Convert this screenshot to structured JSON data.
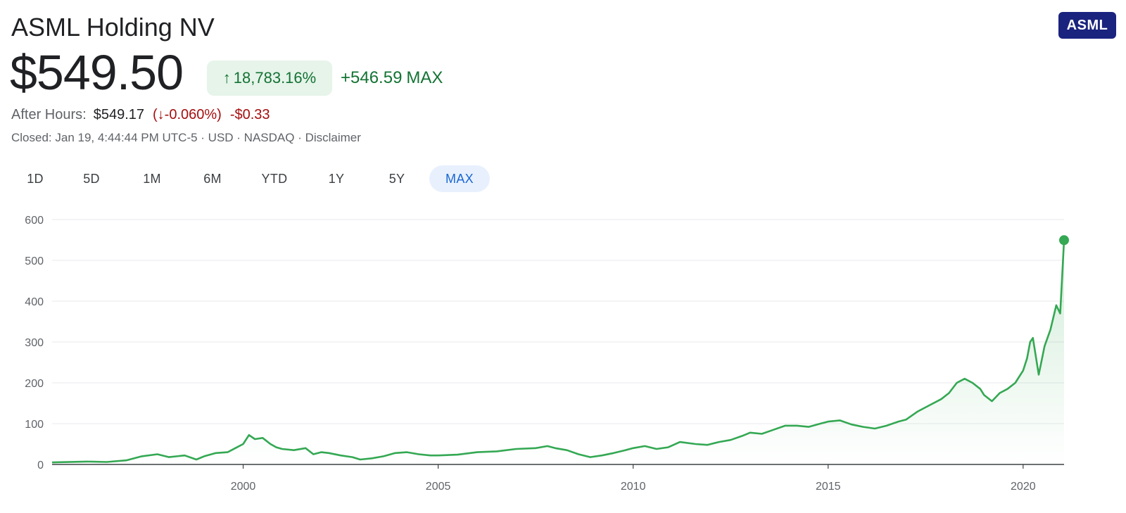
{
  "header": {
    "company": "ASML Holding NV",
    "ticker_badge": "ASML",
    "price": "$549.50",
    "change_pct": "18,783.16%",
    "change_abs": "+546.59",
    "change_range": "MAX",
    "arrow_up": "↑",
    "arrow_down": "↓"
  },
  "after_hours": {
    "label": "After Hours:",
    "price": "$549.17",
    "change_pct": "(↓-0.060%)",
    "change_abs": "-$0.33"
  },
  "meta_line": "Closed: Jan 19, 4:44:44 PM UTC-5 · USD · NASDAQ · Disclaimer",
  "ranges": [
    {
      "label": "1D",
      "active": false
    },
    {
      "label": "5D",
      "active": false
    },
    {
      "label": "1M",
      "active": false
    },
    {
      "label": "6M",
      "active": false
    },
    {
      "label": "YTD",
      "active": false
    },
    {
      "label": "1Y",
      "active": false
    },
    {
      "label": "5Y",
      "active": false
    },
    {
      "label": "MAX",
      "active": true
    }
  ],
  "colors": {
    "line": "#34a853",
    "positive": "#137333",
    "negative": "#a50e0e",
    "badge": "#1a237e"
  },
  "chart_data": {
    "type": "area",
    "ylim": [
      0,
      600
    ],
    "yticks": [
      0,
      100,
      200,
      300,
      400,
      500,
      600
    ],
    "xlim": [
      1995.1,
      2021.05
    ],
    "xticks": [
      2000,
      2005,
      2010,
      2015,
      2020
    ],
    "grid": true,
    "series": [
      {
        "x": [
          1995.1,
          1996.0,
          1996.5,
          1997.0,
          1997.4,
          1997.8,
          1998.1,
          1998.5,
          1998.8,
          1999.0,
          1999.3,
          1999.6,
          1999.8,
          2000.0,
          2000.15,
          2000.3,
          2000.5,
          2000.7,
          2000.85,
          2001.0,
          2001.3,
          2001.6,
          2001.8,
          2002.0,
          2002.2,
          2002.5,
          2002.8,
          2003.0,
          2003.3,
          2003.6,
          2003.9,
          2004.2,
          2004.5,
          2004.8,
          2005.0,
          2005.5,
          2006.0,
          2006.5,
          2007.0,
          2007.5,
          2007.8,
          2008.0,
          2008.3,
          2008.6,
          2008.9,
          2009.2,
          2009.5,
          2009.8,
          2010.0,
          2010.3,
          2010.6,
          2010.9,
          2011.2,
          2011.6,
          2011.9,
          2012.2,
          2012.5,
          2012.8,
          2013.0,
          2013.3,
          2013.6,
          2013.9,
          2014.2,
          2014.5,
          2014.8,
          2015.0,
          2015.3,
          2015.6,
          2015.9,
          2016.2,
          2016.5,
          2016.8,
          2017.0,
          2017.3,
          2017.6,
          2017.9,
          2018.1,
          2018.3,
          2018.5,
          2018.7,
          2018.9,
          2019.0,
          2019.2,
          2019.4,
          2019.6,
          2019.8,
          2020.0,
          2020.1,
          2020.18,
          2020.25,
          2020.4,
          2020.55,
          2020.7,
          2020.85,
          2020.95,
          2021.05
        ],
        "y": [
          5,
          7,
          6,
          10,
          20,
          25,
          18,
          22,
          12,
          20,
          28,
          30,
          40,
          50,
          72,
          62,
          65,
          50,
          42,
          38,
          35,
          40,
          25,
          30,
          28,
          22,
          18,
          12,
          15,
          20,
          28,
          30,
          25,
          22,
          22,
          24,
          30,
          32,
          38,
          40,
          45,
          40,
          35,
          25,
          18,
          22,
          28,
          35,
          40,
          45,
          38,
          42,
          55,
          50,
          48,
          55,
          60,
          70,
          78,
          75,
          85,
          95,
          95,
          92,
          100,
          105,
          108,
          98,
          92,
          88,
          95,
          105,
          110,
          130,
          145,
          160,
          175,
          200,
          210,
          200,
          185,
          170,
          155,
          175,
          185,
          200,
          230,
          260,
          300,
          310,
          220,
          290,
          330,
          390,
          370,
          549.5
        ]
      }
    ]
  }
}
